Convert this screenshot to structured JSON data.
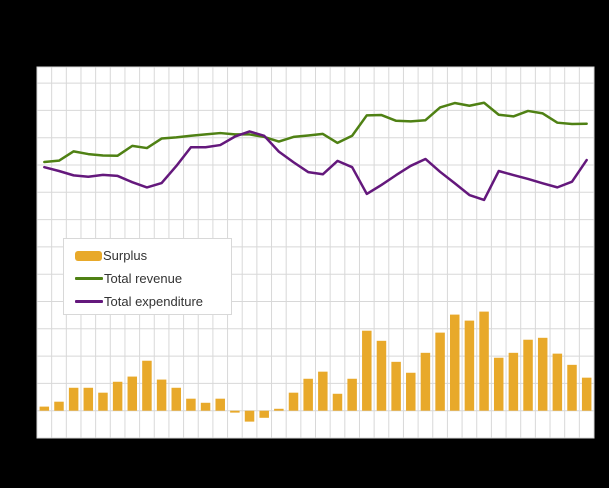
{
  "colors": {
    "background": "#000000",
    "plot_background": "#ffffff",
    "grid": "#d8d8d8",
    "text": "#333333"
  },
  "legend": {
    "items": [
      {
        "label": "Surplus",
        "type": "bar",
        "color": "#e8a92a"
      },
      {
        "label": "Total revenue",
        "type": "line",
        "color": "#4f8114"
      },
      {
        "label": "Total expenditure",
        "type": "line",
        "color": "#64187c"
      }
    ]
  },
  "chart_data": {
    "type": "combo (bar + line)",
    "title": "",
    "xlabel": "",
    "ylabel": "",
    "note": "No title, axis tick labels or units are visible in the image. Values are estimated in vertical grid-step units; 0 = the gridline on which the bars are based. Surplus ≈ Total revenue − Total expenditure.",
    "grid": true,
    "legend_position": "center-left inside plot",
    "ylim": [
      -1.0,
      12.6
    ],
    "x": [
      1,
      2,
      3,
      4,
      5,
      6,
      7,
      8,
      9,
      10,
      11,
      12,
      13,
      14,
      15,
      16,
      17,
      18,
      19,
      20,
      21,
      22,
      23,
      24,
      25,
      26,
      27,
      28,
      29,
      30,
      31,
      32,
      33,
      34,
      35,
      36,
      37,
      38
    ],
    "series": [
      {
        "name": "Surplus",
        "type": "bar",
        "color": "#e8a92a",
        "values": [
          0.15,
          0.33,
          0.84,
          0.84,
          0.66,
          1.06,
          1.25,
          1.83,
          1.14,
          0.84,
          0.44,
          0.29,
          0.44,
          -0.07,
          -0.4,
          -0.26,
          0.07,
          0.66,
          1.17,
          1.43,
          0.62,
          1.17,
          2.93,
          2.56,
          1.79,
          1.39,
          2.12,
          2.86,
          3.52,
          3.3,
          3.63,
          1.94,
          2.12,
          2.6,
          2.67,
          2.09,
          1.68,
          1.21
        ]
      },
      {
        "name": "Total revenue",
        "type": "line",
        "color": "#4f8114",
        "values": [
          9.11,
          9.16,
          9.5,
          9.4,
          9.35,
          9.34,
          9.7,
          9.62,
          9.97,
          10.01,
          10.07,
          10.12,
          10.17,
          10.12,
          10.12,
          10.03,
          9.86,
          10.03,
          10.08,
          10.14,
          9.81,
          10.07,
          10.82,
          10.83,
          10.62,
          10.6,
          10.64,
          11.11,
          11.27,
          11.17,
          11.28,
          10.84,
          10.78,
          10.98,
          10.89,
          10.55,
          10.5,
          10.51
        ]
      },
      {
        "name": "Total expenditure",
        "type": "line",
        "color": "#64187c",
        "values": [
          8.92,
          8.78,
          8.62,
          8.57,
          8.64,
          8.6,
          8.37,
          8.18,
          8.34,
          8.96,
          9.65,
          9.65,
          9.73,
          10.04,
          10.23,
          10.07,
          9.49,
          9.1,
          8.74,
          8.66,
          9.15,
          8.92,
          7.94,
          8.27,
          8.63,
          8.97,
          9.22,
          8.75,
          8.33,
          7.9,
          7.72,
          8.78,
          8.63,
          8.49,
          8.33,
          8.18,
          8.39,
          9.18
        ]
      }
    ]
  }
}
